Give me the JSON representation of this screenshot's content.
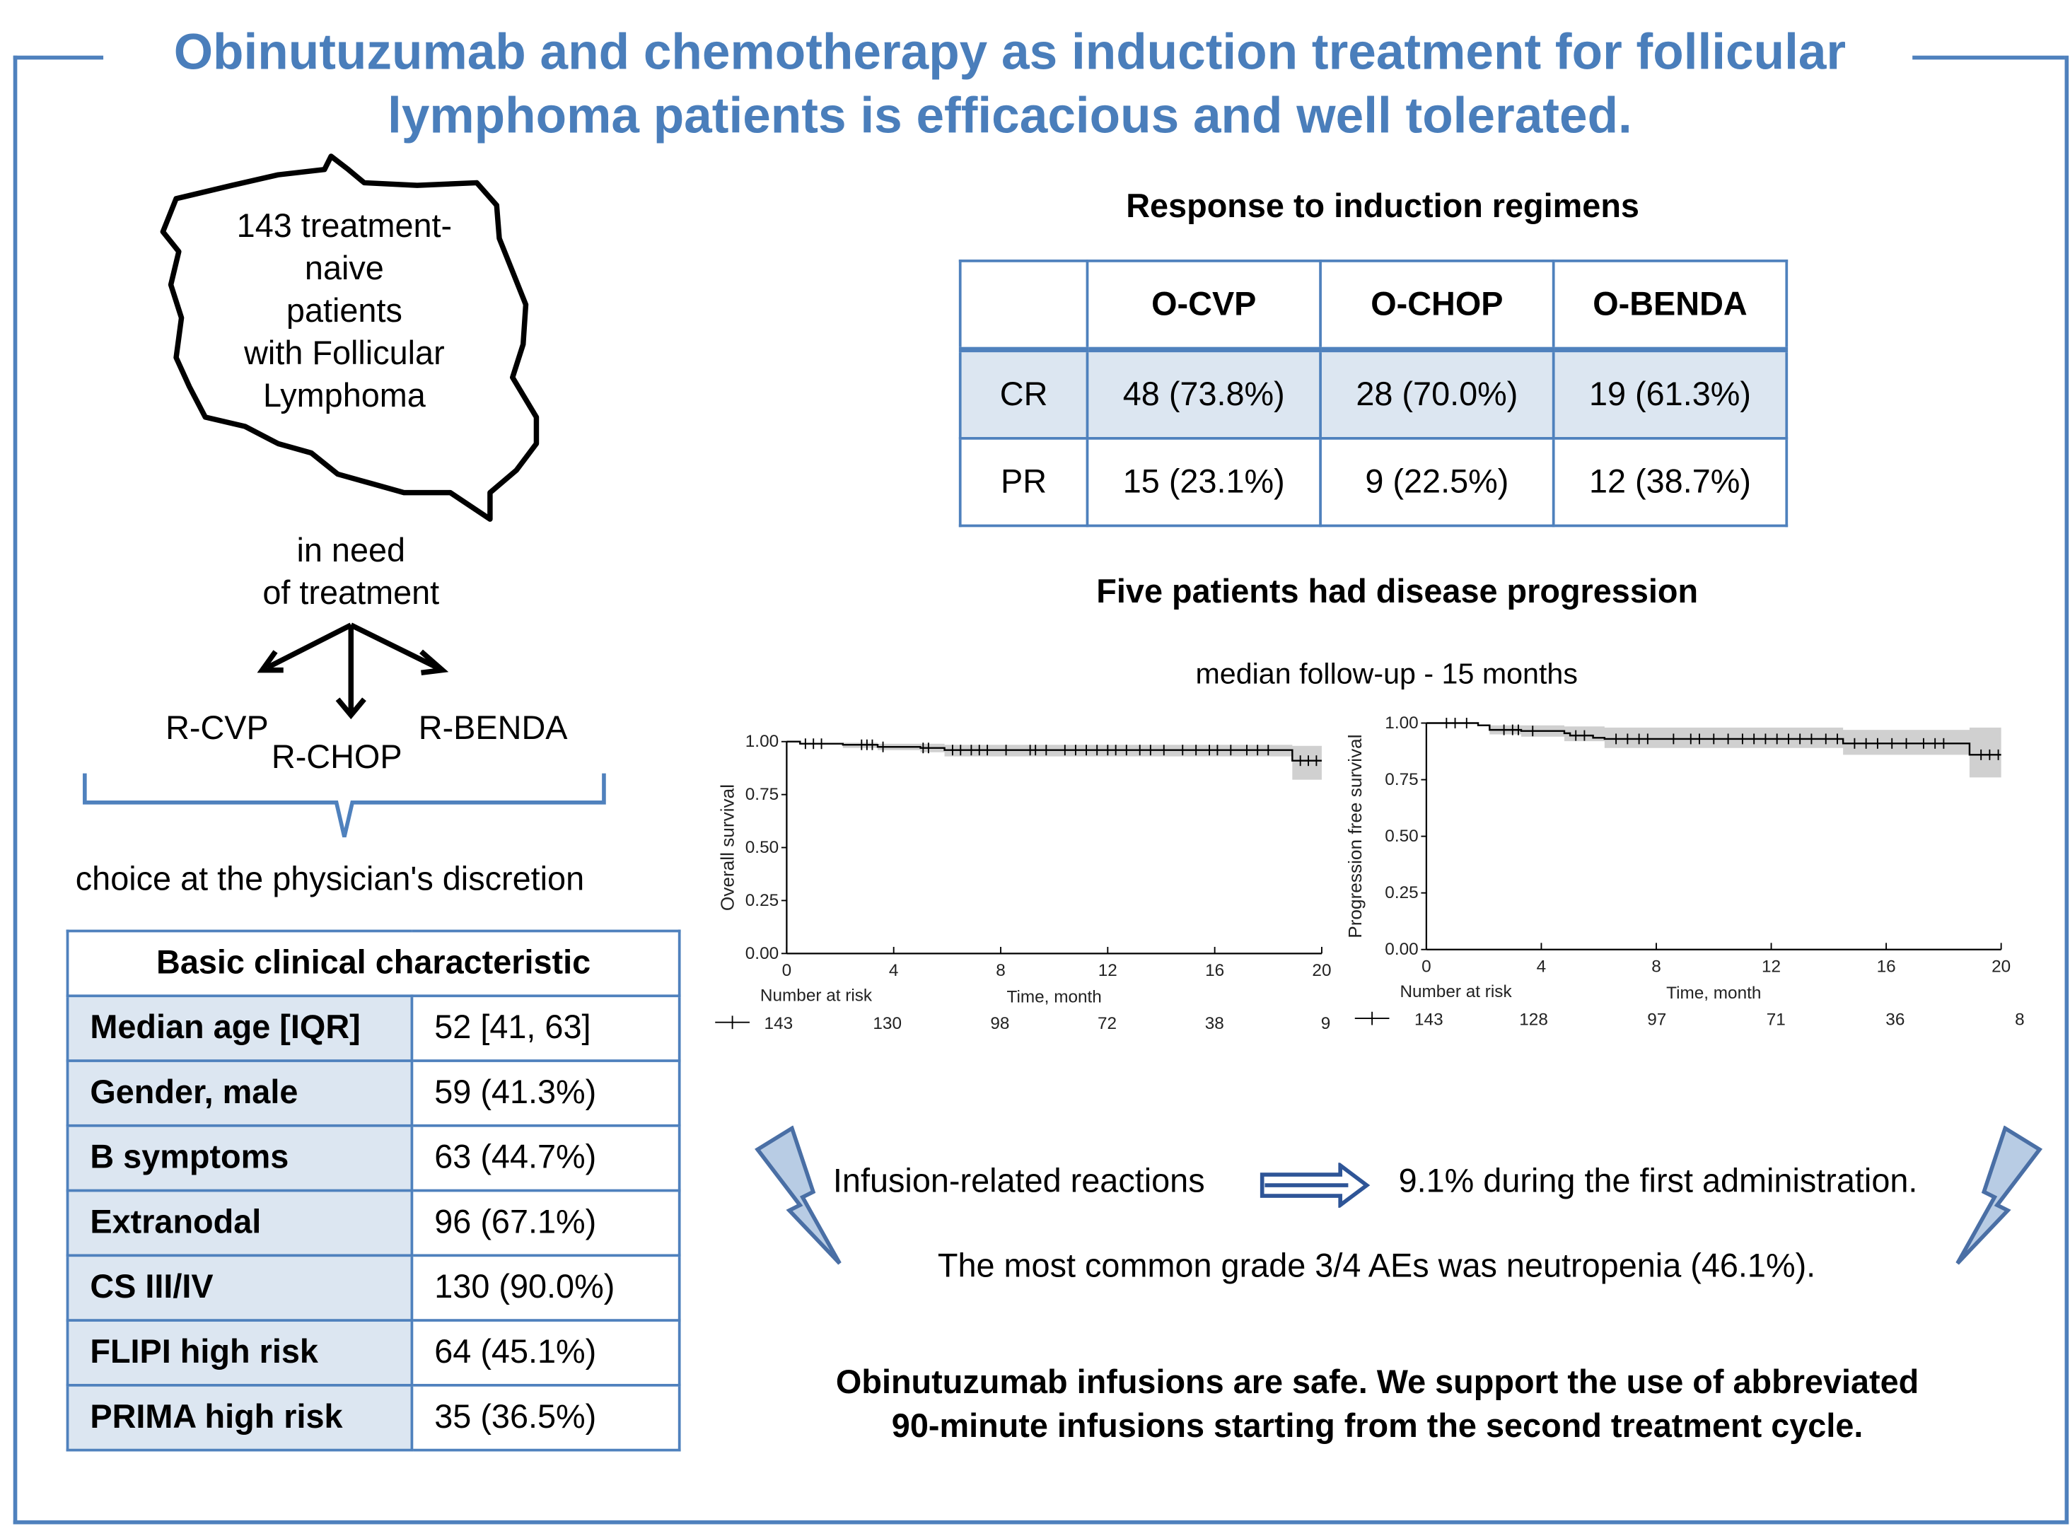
{
  "title": "Obinutuzumab and chemotherapy as induction treatment for follicular lymphoma patients is efficacious and well tolerated.",
  "colors": {
    "accent": "#4f81bd",
    "title": "#4a7ebb",
    "cell_fill": "#dce6f1",
    "ci_band": "#d0d0d0",
    "bolt_fill": "#b8cce4"
  },
  "flow": {
    "map_text": [
      "143 treatment-",
      "naive",
      "patients",
      "with Follicular",
      "Lymphoma"
    ],
    "need_text": [
      "in need",
      "of treatment"
    ],
    "regimens": [
      "R-CVP",
      "R-CHOP",
      "R-BENDA"
    ],
    "choice": "choice at the physician's discretion",
    "map_icon": "poland-map-outline-icon"
  },
  "clinical_table": {
    "header": "Basic clinical characteristic",
    "rows": [
      {
        "label": "Median age [IQR]",
        "value": "52 [41, 63]"
      },
      {
        "label": "Gender, male",
        "value": "59 (41.3%)"
      },
      {
        "label": "B symptoms",
        "value": "63 (44.7%)"
      },
      {
        "label": "Extranodal",
        "value": "96 (67.1%)"
      },
      {
        "label": "CS III/IV",
        "value": "130 (90.0%)"
      },
      {
        "label": "FLIPI high  risk",
        "value": "64 (45.1%)"
      },
      {
        "label": "PRIMA high risk",
        "value": "35 (36.5%)"
      }
    ]
  },
  "response": {
    "title": "Response to induction regimens",
    "columns": [
      "O-CVP",
      "O-CHOP",
      "O-BENDA"
    ],
    "rows": [
      {
        "label": "CR",
        "values": [
          "48 (73.8%)",
          "28 (70.0%)",
          "19 (61.3%)"
        ]
      },
      {
        "label": "PR",
        "values": [
          "15 (23.1%)",
          "9 (22.5%)",
          "12 (38.7%)"
        ]
      }
    ]
  },
  "progression_title": "Five patients had disease progression",
  "followup": "median follow-up - 15 months",
  "chart_data": [
    {
      "type": "line",
      "ylabel": "Overall survival",
      "xlabel": "Time, month",
      "xlim": [
        0,
        20
      ],
      "ylim": [
        0,
        1
      ],
      "xticks": [
        "0",
        "4",
        "8",
        "12",
        "16",
        "20"
      ],
      "yticks": [
        "0.00",
        "0.25",
        "0.50",
        "0.75",
        "1.00"
      ],
      "steps": [
        [
          0,
          1.0
        ],
        [
          0.5,
          0.99
        ],
        [
          2.1,
          0.985
        ],
        [
          3.4,
          0.975
        ],
        [
          5.0,
          0.97
        ],
        [
          5.9,
          0.96
        ],
        [
          18.9,
          0.91
        ],
        [
          20,
          0.91
        ]
      ],
      "ci": [
        [
          0,
          1.0,
          1.0
        ],
        [
          2.1,
          0.995,
          0.97
        ],
        [
          3.4,
          0.99,
          0.96
        ],
        [
          5.0,
          0.99,
          0.95
        ],
        [
          5.9,
          0.985,
          0.93
        ],
        [
          18.9,
          0.98,
          0.82
        ],
        [
          20,
          0.98,
          0.82
        ]
      ],
      "censor": [
        0.7,
        1.0,
        1.3,
        2.8,
        3.0,
        3.2,
        3.6,
        5.1,
        5.3,
        6.2,
        6.5,
        6.9,
        7.2,
        7.5,
        8.2,
        9.1,
        9.3,
        9.7,
        10.4,
        10.8,
        11.2,
        11.6,
        12.0,
        12.3,
        12.7,
        13.2,
        13.6,
        14.1,
        14.8,
        15.3,
        15.8,
        16.1,
        16.6,
        17.2,
        17.6,
        18.0,
        19.2,
        19.5,
        19.8
      ],
      "risk_label": "Number at risk",
      "at_risk": [
        "143",
        "130",
        "98",
        "72",
        "38",
        "9"
      ]
    },
    {
      "type": "line",
      "ylabel": "Progression free survival",
      "xlabel": "Time, month",
      "xlim": [
        0,
        20
      ],
      "ylim": [
        0,
        1
      ],
      "xticks": [
        "0",
        "4",
        "8",
        "12",
        "16",
        "20"
      ],
      "yticks": [
        "0.00",
        "0.25",
        "0.50",
        "0.75",
        "1.00"
      ],
      "steps": [
        [
          0,
          1.0
        ],
        [
          1.8,
          0.99
        ],
        [
          2.2,
          0.97
        ],
        [
          3.3,
          0.965
        ],
        [
          4.8,
          0.955
        ],
        [
          5.0,
          0.945
        ],
        [
          5.8,
          0.935
        ],
        [
          6.2,
          0.93
        ],
        [
          14.5,
          0.91
        ],
        [
          18.9,
          0.86
        ],
        [
          20,
          0.86
        ]
      ],
      "ci": [
        [
          0,
          1.0,
          1.0
        ],
        [
          2.2,
          0.99,
          0.95
        ],
        [
          3.3,
          0.99,
          0.94
        ],
        [
          4.8,
          0.985,
          0.92
        ],
        [
          6.2,
          0.98,
          0.89
        ],
        [
          14.5,
          0.97,
          0.86
        ],
        [
          18.9,
          0.98,
          0.76
        ],
        [
          20,
          0.98,
          0.76
        ]
      ],
      "censor": [
        0.7,
        1.0,
        1.4,
        2.7,
        3.0,
        3.2,
        3.7,
        5.2,
        5.5,
        6.6,
        7.0,
        7.4,
        7.7,
        8.6,
        9.2,
        9.5,
        10.0,
        10.5,
        11.0,
        11.4,
        11.8,
        12.2,
        12.6,
        13.0,
        13.4,
        13.9,
        14.3,
        14.9,
        15.3,
        15.7,
        16.2,
        16.7,
        17.3,
        17.7,
        18.0,
        19.3,
        19.6,
        19.9
      ],
      "risk_label": "Number at risk",
      "at_risk": [
        "143",
        "128",
        "97",
        "71",
        "36",
        "8"
      ]
    }
  ],
  "ae": {
    "infusion_label": "Infusion-related reactions",
    "infusion_value": "9.1% during the first administration.",
    "neutropenia": "The most common grade 3/4 AEs was neutropenia (46.1%).",
    "arrow_icon": "double-arrow-right-icon",
    "bolt_icon": "lightning-bolt-icon"
  },
  "conclusion": [
    "Obinutuzumab infusions are safe. We support the use of abbreviated",
    "90-minute infusions starting from the second treatment cycle."
  ]
}
